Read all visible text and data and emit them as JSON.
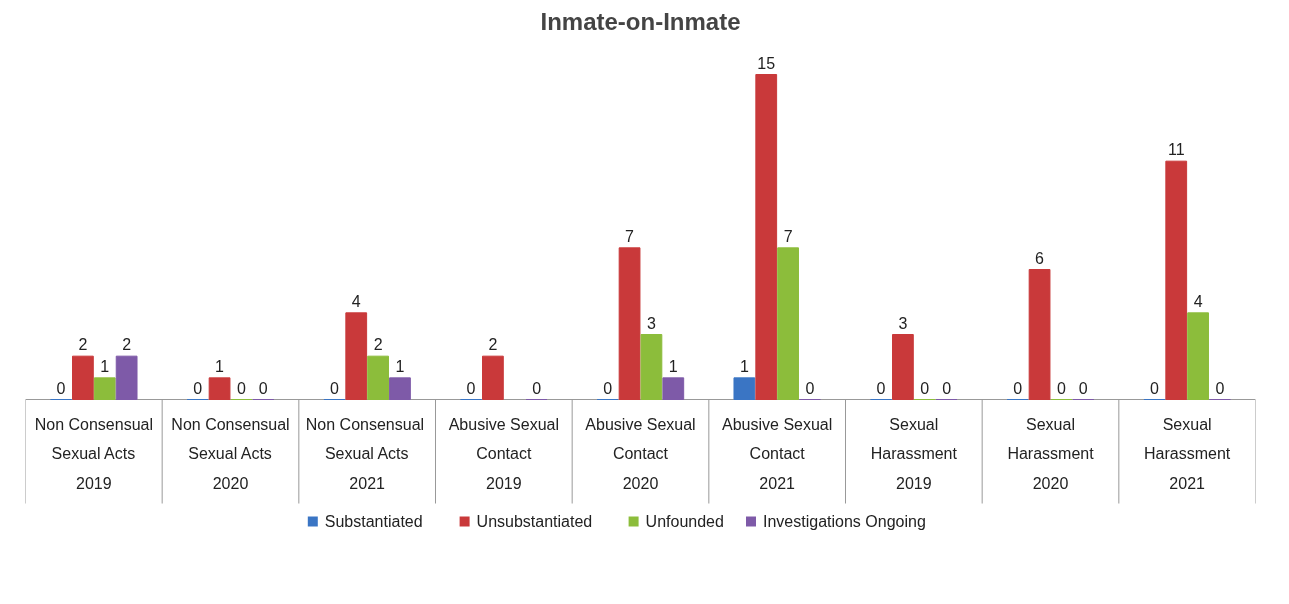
{
  "chart_data": {
    "type": "bar",
    "title": "Inmate-on-Inmate",
    "relative": false,
    "data_labels": true,
    "legend": "bottom",
    "grid": false,
    "categories": [
      "Non Consensual\nSexual Acts\n2019",
      "Non Consensual\nSexual Acts\n2020",
      "Non  Consensual\nSexual Acts\n2021",
      "Abusive Sexual\nContact\n2019",
      "Abusive Sexual\nContact\n2020",
      "Abusive Sexual\nContact\n2021",
      "Sexual\nHarassment\n2019",
      "Sexual\nHarassment\n2020",
      "Sexual\nHarassment\n2021"
    ],
    "series": [
      {
        "name": "Substantiated",
        "color": "#3a75c4",
        "values": [
          0,
          0,
          0,
          0,
          0,
          1,
          0,
          0,
          0
        ]
      },
      {
        "name": "Unsubstantiated",
        "color": "#c9393a",
        "values": [
          2,
          1,
          4,
          2,
          7,
          15,
          3,
          6,
          11
        ]
      },
      {
        "name": "Unfounded",
        "color": "#8cbd3b",
        "values": [
          1,
          0,
          2,
          null,
          3,
          7,
          0,
          0,
          4
        ]
      },
      {
        "name": "Investigations Ongoing",
        "color": "#7e5aa8",
        "values": [
          2,
          0,
          1,
          0,
          1,
          0,
          0,
          0,
          0
        ]
      }
    ]
  }
}
